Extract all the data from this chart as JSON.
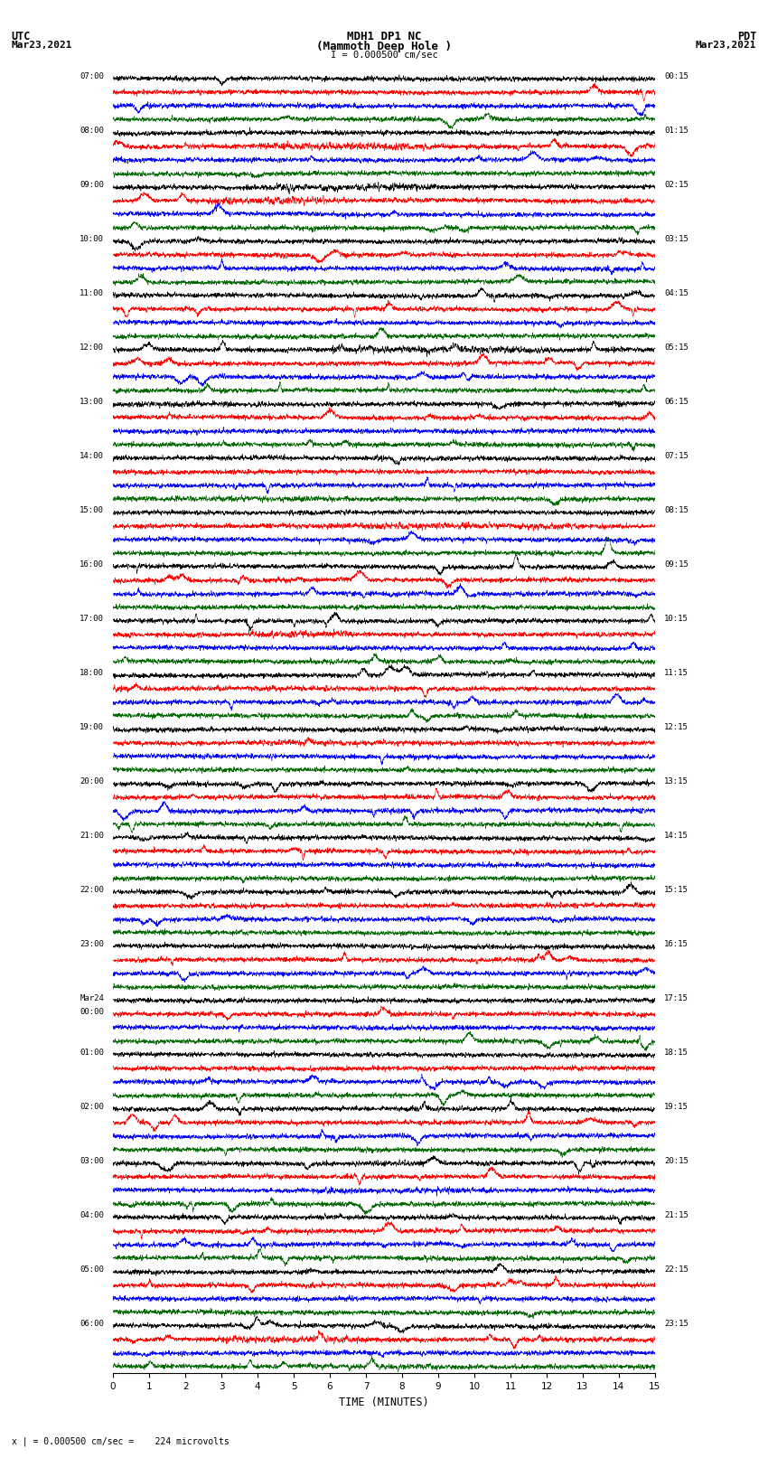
{
  "title_line1": "MDH1 DP1 NC",
  "title_line2": "(Mammoth Deep Hole )",
  "title_scale": "I = 0.000500 cm/sec",
  "left_header_line1": "UTC",
  "left_header_line2": "Mar23,2021",
  "right_header_line1": "PDT",
  "right_header_line2": "Mar23,2021",
  "xlabel": "TIME (MINUTES)",
  "footer": "x | = 0.000500 cm/sec =    224 microvolts",
  "hour_labels_utc": [
    "07:00",
    "08:00",
    "09:00",
    "10:00",
    "11:00",
    "12:00",
    "13:00",
    "14:00",
    "15:00",
    "16:00",
    "17:00",
    "18:00",
    "19:00",
    "20:00",
    "21:00",
    "22:00",
    "23:00",
    "Mar24\n00:00",
    "01:00",
    "02:00",
    "03:00",
    "04:00",
    "05:00",
    "06:00"
  ],
  "hour_labels_pdt": [
    "00:15",
    "01:15",
    "02:15",
    "03:15",
    "04:15",
    "05:15",
    "06:15",
    "07:15",
    "08:15",
    "09:15",
    "10:15",
    "11:15",
    "12:15",
    "13:15",
    "14:15",
    "15:15",
    "16:15",
    "17:15",
    "18:15",
    "19:15",
    "20:15",
    "21:15",
    "22:15",
    "23:15"
  ],
  "trace_colors": [
    "#000000",
    "#ff0000",
    "#0000ff",
    "#006600"
  ],
  "background_color": "#ffffff",
  "n_minutes": 15,
  "n_samples": 3000,
  "amplitude_scale": 0.42,
  "noise_base": 0.25,
  "noise_seed": 12345
}
